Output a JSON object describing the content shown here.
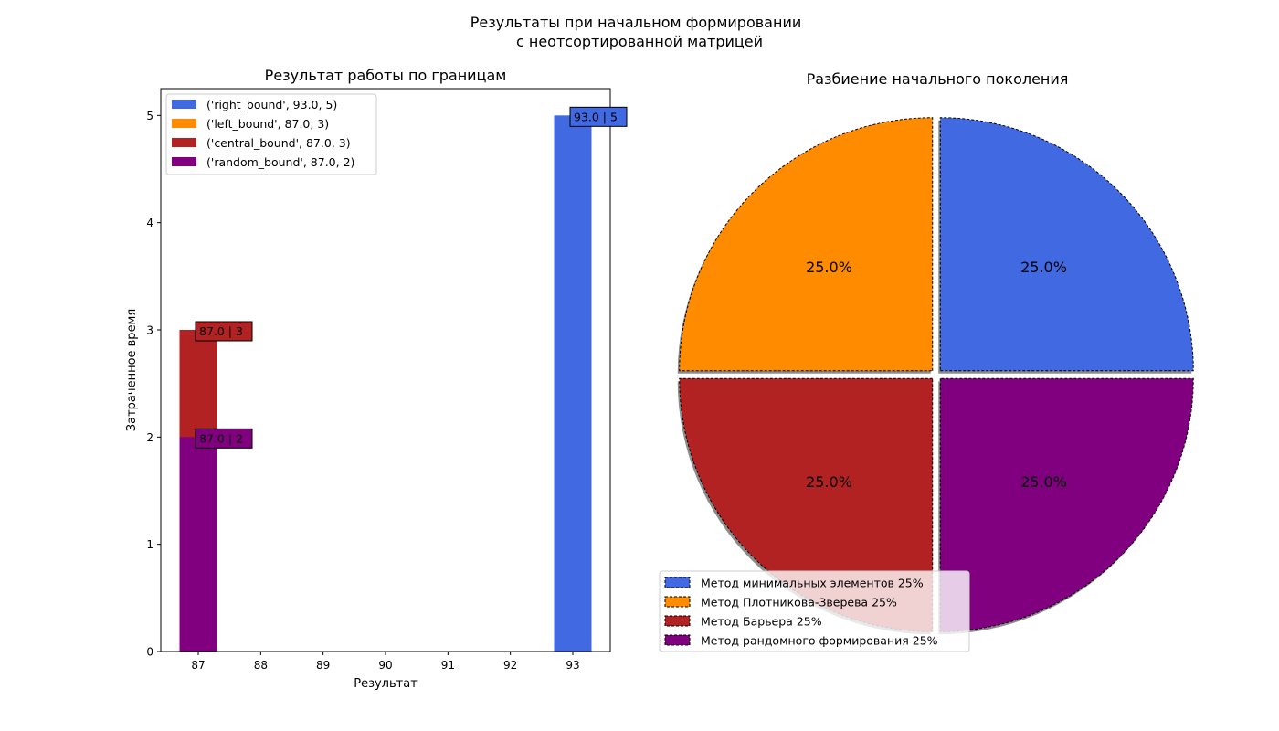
{
  "suptitle": [
    "Результаты при начальном формировании",
    "с неотсортированной матрицей"
  ],
  "chart_data": [
    {
      "type": "bar",
      "title": "Результат работы по границам",
      "xlabel": "Результат",
      "ylabel": "Затраченное время",
      "xlim": [
        86.4,
        93.6
      ],
      "ylim": [
        0,
        5.25
      ],
      "xticks": [
        87,
        88,
        89,
        90,
        91,
        92,
        93
      ],
      "yticks": [
        0,
        1,
        2,
        3,
        4,
        5
      ],
      "bar_width": 0.6,
      "legend_position": "upper left",
      "series": [
        {
          "name": "('right_bound', 93.0, 5)",
          "x": 93.0,
          "value": 5,
          "color": "#4169e1",
          "label": "93.0 | 5"
        },
        {
          "name": "('left_bound', 87.0, 3)",
          "x": 87.0,
          "value": 3,
          "color": "#ff8c00",
          "label": ""
        },
        {
          "name": "('central_bound', 87.0, 3)",
          "x": 87.0,
          "value": 3,
          "color": "#b22222",
          "label": "87.0 | 3"
        },
        {
          "name": "('random_bound', 87.0, 2)",
          "x": 87.0,
          "value": 2,
          "color": "#800080",
          "label": "87.0 | 2"
        }
      ]
    },
    {
      "type": "pie",
      "title": "Разбиение начального поколения",
      "legend_position": "lower left",
      "slices": [
        {
          "name": "Метод минимальных элементов 25%",
          "value": 25.0,
          "label": "25.0%",
          "color": "#4169e1"
        },
        {
          "name": "Метод Плотникова-Зверева 25%",
          "value": 25.0,
          "label": "25.0%",
          "color": "#ff8c00"
        },
        {
          "name": "Метод Барьера 25%",
          "value": 25.0,
          "label": "25.0%",
          "color": "#b22222"
        },
        {
          "name": "Метод рандомного формирования 25%",
          "value": 25.0,
          "label": "25.0%",
          "color": "#800080"
        }
      ]
    }
  ]
}
